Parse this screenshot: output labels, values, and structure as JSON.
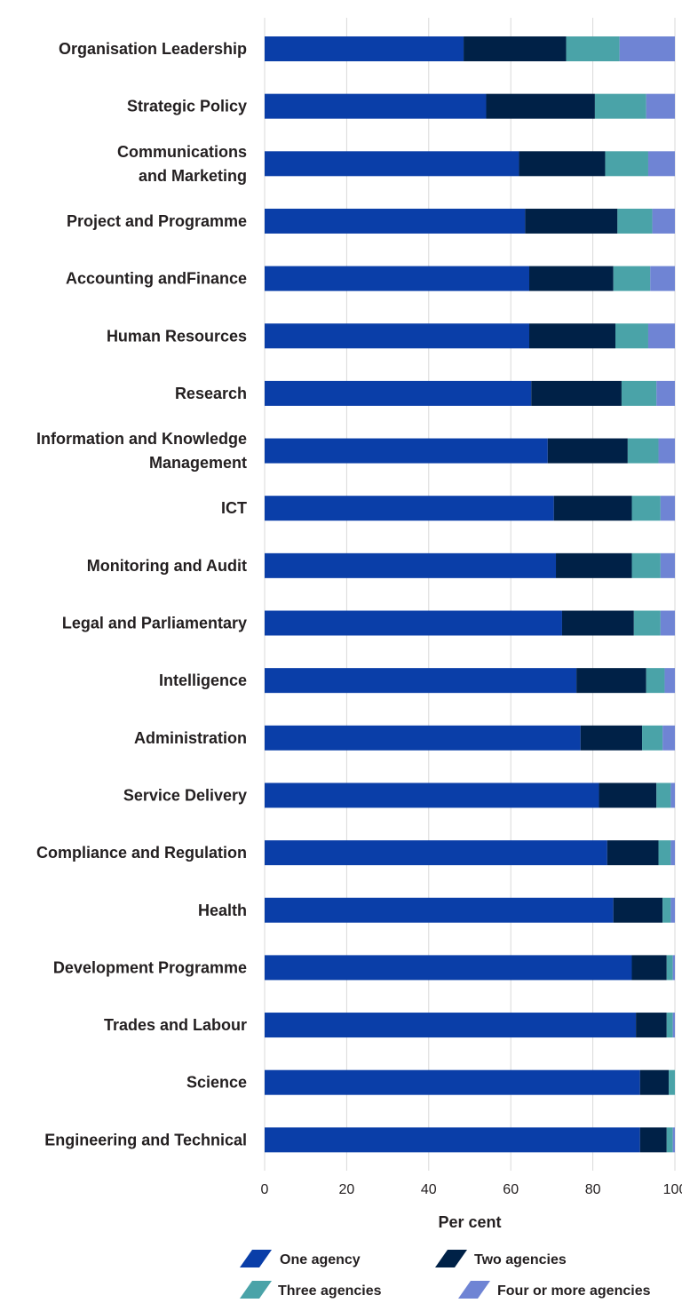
{
  "chart_data": {
    "type": "bar",
    "orientation": "horizontal",
    "stacked": true,
    "title": "",
    "xlabel": "Per cent",
    "ylabel": "",
    "xlim": [
      0,
      100
    ],
    "xticks": [
      0,
      20,
      40,
      60,
      80,
      100
    ],
    "grid": true,
    "legend_position": "bottom",
    "categories": [
      [
        "Organisation Leadership"
      ],
      [
        "Strategic Policy"
      ],
      [
        "Communications",
        "and Marketing"
      ],
      [
        "Project and Programme"
      ],
      [
        "Accounting andFinance"
      ],
      [
        "Human Resources"
      ],
      [
        "Research"
      ],
      [
        "Information and Knowledge",
        "Management"
      ],
      [
        "ICT"
      ],
      [
        "Monitoring and Audit"
      ],
      [
        "Legal and Parliamentary"
      ],
      [
        "Intelligence"
      ],
      [
        "Administration"
      ],
      [
        "Service Delivery"
      ],
      [
        "Compliance and Regulation"
      ],
      [
        "Health"
      ],
      [
        "Development Programme"
      ],
      [
        "Trades and Labour"
      ],
      [
        "Science"
      ],
      [
        "Engineering and Technical"
      ]
    ],
    "series": [
      {
        "name": "One agency",
        "color": "#0a3ea8",
        "values": [
          48.5,
          54,
          62,
          63.5,
          64.5,
          64.5,
          65,
          69,
          70.5,
          71,
          72.5,
          76,
          77,
          81.5,
          83.5,
          85,
          89.5,
          90.5,
          91.5,
          91.5
        ]
      },
      {
        "name": "Two agencies",
        "color": "#002147",
        "values": [
          25,
          26.5,
          21,
          22.5,
          20.5,
          21,
          22,
          19.5,
          19,
          18.5,
          17.5,
          17,
          15,
          14,
          12.5,
          12,
          8.5,
          7.5,
          7,
          6.5
        ]
      },
      {
        "name": "Three agencies",
        "color": "#4aa3a8",
        "values": [
          13,
          12.5,
          10.5,
          8.5,
          9,
          8,
          8.5,
          7.5,
          7,
          7,
          6.5,
          4.5,
          5,
          3.5,
          3,
          2,
          1.5,
          1.5,
          1.5,
          1.5
        ]
      },
      {
        "name": "Four or more agencies",
        "color": "#6f84d4",
        "values": [
          13.5,
          7,
          6.5,
          5.5,
          6,
          6.5,
          4.5,
          4,
          3.5,
          3.5,
          3.5,
          2.5,
          3,
          1,
          1,
          1,
          0.5,
          0.5,
          0,
          0.5
        ]
      }
    ]
  }
}
